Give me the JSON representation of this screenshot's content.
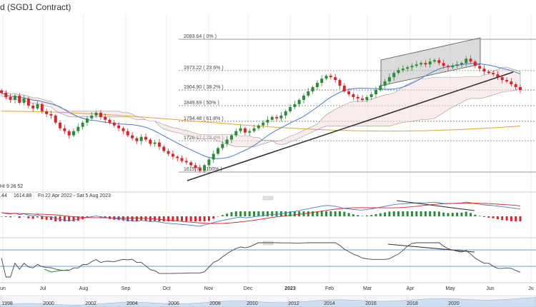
{
  "header": {
    "title": "d (SGD1 Contract)"
  },
  "indicator_labels": {
    "ichimoku": "HI  9  26  52",
    "info_left": ".44",
    "info_value": "1614.88",
    "info_range": "Fri 22 Apr 2022 - Sat 5 Aug 2023"
  },
  "chart_data": {
    "type": "candlestick",
    "title": "(SGD1 Contract)",
    "xlabel": "",
    "ylabel": "",
    "fib_levels": [
      {
        "label": "2083.64 ( 0% )",
        "value": 2083.64
      },
      {
        "label": "1973.22 ( 23.6% )",
        "value": 1973.22
      },
      {
        "label": "1904.90 ( 38.2% )",
        "value": 1904.9
      },
      {
        "label": "1849.69 ( 50% )",
        "value": 1849.69
      },
      {
        "label": "1794.48 ( 61.8% )",
        "value": 1794.48
      },
      {
        "label": "1726.17 ( 78.4% )",
        "value": 1726.17
      },
      {
        "label": "1615.75 ( 100% )",
        "value": 1615.75
      }
    ],
    "x_months": [
      "un",
      "Jul",
      "Aug",
      "Sep",
      "Oct",
      "Nov",
      "Dec",
      "2023",
      "Feb",
      "Mar",
      "Apr",
      "May",
      "Jun",
      "Ju"
    ],
    "navigator_years": [
      "1998",
      "2000",
      "2002",
      "2004",
      "2006",
      "2008",
      "2010",
      "2012",
      "2014",
      "2016",
      "2018",
      "2020"
    ],
    "close_series": [
      1895,
      1880,
      1870,
      1885,
      1860,
      1875,
      1850,
      1840,
      1855,
      1830,
      1820,
      1815,
      1790,
      1770,
      1760,
      1745,
      1760,
      1775,
      1790,
      1805,
      1815,
      1825,
      1810,
      1800,
      1790,
      1780,
      1770,
      1760,
      1745,
      1735,
      1725,
      1740,
      1730,
      1715,
      1720,
      1705,
      1690,
      1680,
      1670,
      1665,
      1655,
      1650,
      1640,
      1630,
      1620,
      1640,
      1660,
      1680,
      1700,
      1715,
      1730,
      1745,
      1760,
      1770,
      1755,
      1760,
      1770,
      1780,
      1790,
      1800,
      1810,
      1805,
      1815,
      1830,
      1845,
      1855,
      1870,
      1885,
      1900,
      1915,
      1930,
      1945,
      1955,
      1950,
      1940,
      1920,
      1900,
      1890,
      1880,
      1875,
      1870,
      1880,
      1890,
      1905,
      1920,
      1935,
      1950,
      1965,
      1975,
      1980,
      1985,
      1990,
      1995,
      2000,
      1995,
      2005,
      2010,
      2000,
      1990,
      1985,
      1990,
      1995,
      2000,
      2015,
      2005,
      1990,
      1980,
      1970,
      1965,
      1960,
      1950,
      1940,
      1935,
      1925,
      1915,
      1905
    ]
  },
  "colors": {
    "up": "#2e8b3a",
    "down": "#d6262b",
    "trendline": "#333333",
    "ma_long": "#e8a33a",
    "ma_short": "#4a7bc8"
  }
}
